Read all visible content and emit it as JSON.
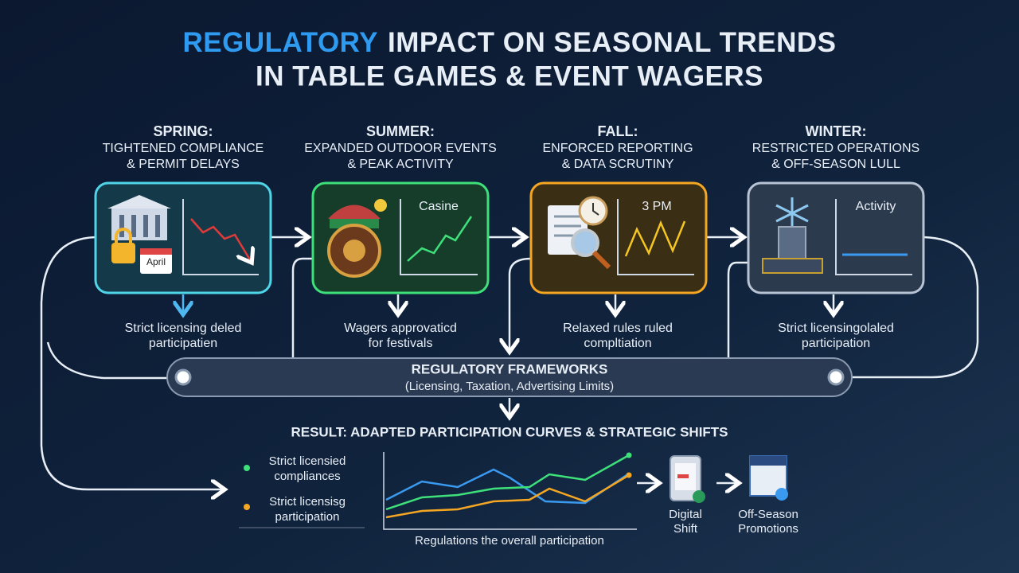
{
  "header": {
    "title_highlight": "REGULATORY",
    "title_rest": "IMPACT ON SEASONAL TRENDS",
    "title_line2": "IN TABLE GAMES & EVENT WAGERS"
  },
  "stages": [
    {
      "heading": "SPRING:",
      "subtitle": [
        "TIGHTENED COMPLIANCE",
        "& PERMIT DELAYS"
      ],
      "panel_label": "April",
      "note": [
        "Strict licensing deled",
        "participatien"
      ]
    },
    {
      "heading": "SUMMER:",
      "subtitle": [
        "EXPANDED OUTDOOR EVENTS",
        "& PEAK ACTIVITY"
      ],
      "panel_label": "Casine",
      "note": [
        "Wagers approvaticd",
        "for festivals"
      ]
    },
    {
      "heading": "FALL:",
      "subtitle": [
        "ENFORCED REPORTING",
        "& DATA SCRUTINY"
      ],
      "panel_label": "3 PM",
      "note": [
        "Relaxed rules ruled",
        "compltiation"
      ]
    },
    {
      "heading": "WINTER:",
      "subtitle": [
        "RESTRICTED OPERATIONS",
        "& OFF-SEASON LULL"
      ],
      "panel_label": "Activity",
      "note": [
        "Strict licensingolaled",
        "participation"
      ]
    }
  ],
  "framework": {
    "title": "REGULATORY FRAMEWORKS",
    "subtitle": "(Licensing, Taxation, Advertising Limits)"
  },
  "result": {
    "title": "RESULT: ADAPTED PARTICIPATION CURVES & STRATEGIC SHIFTS",
    "legend": [
      [
        "Strict licensied",
        "compliances"
      ],
      [
        "Strict licensisg",
        "participation"
      ]
    ],
    "caption": "Regulations the overall participation",
    "outcomes": [
      [
        "Digital",
        "Shift"
      ],
      [
        "Off-Season",
        "Promotions"
      ]
    ]
  }
}
